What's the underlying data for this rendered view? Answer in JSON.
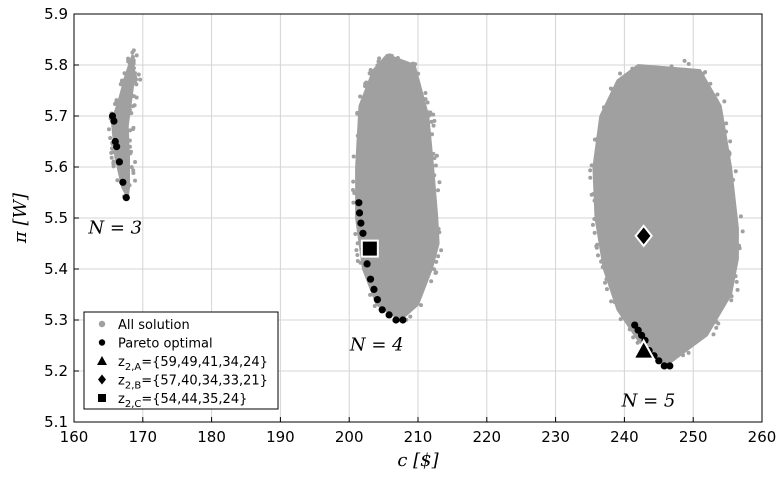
{
  "chart_data": {
    "type": "scatter",
    "xlabel": "c [$]",
    "ylabel": "π [W]",
    "xlim": [
      160,
      260
    ],
    "ylim": [
      5.1,
      5.9
    ],
    "x_ticks": [
      160,
      170,
      180,
      190,
      200,
      210,
      220,
      230,
      240,
      250,
      260
    ],
    "y_ticks": [
      5.1,
      5.2,
      5.3,
      5.4,
      5.5,
      5.6,
      5.7,
      5.8,
      5.9
    ],
    "grid": true,
    "legend_position": "bottom-left",
    "colors": {
      "all": "#a0a0a0",
      "pareto": "#000000",
      "frame": "#000000",
      "grid": "#d4d4d4"
    },
    "group_labels": [
      {
        "text": "N = 3",
        "x": 166,
        "y": 5.47
      },
      {
        "text": "N = 4",
        "x": 204,
        "y": 5.24
      },
      {
        "text": "N = 5",
        "x": 243.5,
        "y": 5.13
      }
    ],
    "series": [
      {
        "name": "All solution",
        "marker": "circle",
        "color": "#a0a0a0",
        "clusters": [
          {
            "left_boundary": [
              [
                168.5,
                5.82
              ],
              [
                167.5,
                5.78
              ],
              [
                166.5,
                5.73
              ],
              [
                165.5,
                5.69
              ],
              [
                166.0,
                5.62
              ],
              [
                167.0,
                5.56
              ],
              [
                167.8,
                5.54
              ]
            ],
            "right_boundary": [
              [
                168.5,
                5.82
              ],
              [
                168.8,
                5.78
              ],
              [
                168.3,
                5.73
              ],
              [
                167.8,
                5.68
              ],
              [
                168.0,
                5.62
              ],
              [
                168.0,
                5.56
              ],
              [
                167.8,
                5.54
              ]
            ]
          },
          {
            "left_boundary": [
              [
                205.5,
                5.82
              ],
              [
                203.5,
                5.79
              ],
              [
                201.5,
                5.72
              ],
              [
                201.0,
                5.6
              ],
              [
                201.0,
                5.5
              ],
              [
                202.0,
                5.4
              ],
              [
                204.0,
                5.33
              ],
              [
                207.5,
                5.3
              ]
            ],
            "right_boundary": [
              [
                205.5,
                5.82
              ],
              [
                209.5,
                5.8
              ],
              [
                211.5,
                5.7
              ],
              [
                212.2,
                5.6
              ],
              [
                212.8,
                5.5
              ],
              [
                213.0,
                5.45
              ],
              [
                212.0,
                5.4
              ],
              [
                210.0,
                5.33
              ],
              [
                207.5,
                5.3
              ]
            ]
          },
          {
            "left_boundary": [
              [
                242.0,
                5.8
              ],
              [
                239.0,
                5.77
              ],
              [
                236.5,
                5.7
              ],
              [
                235.5,
                5.6
              ],
              [
                235.8,
                5.5
              ],
              [
                237.0,
                5.4
              ],
              [
                239.0,
                5.32
              ],
              [
                242.0,
                5.26
              ],
              [
                246.0,
                5.21
              ]
            ],
            "right_boundary": [
              [
                242.0,
                5.8
              ],
              [
                251.0,
                5.79
              ],
              [
                254.0,
                5.72
              ],
              [
                255.5,
                5.6
              ],
              [
                256.5,
                5.48
              ],
              [
                256.5,
                5.42
              ],
              [
                255.5,
                5.35
              ],
              [
                252.0,
                5.27
              ],
              [
                246.0,
                5.21
              ]
            ]
          }
        ]
      },
      {
        "name": "Pareto optimal",
        "marker": "circle",
        "color": "#000000",
        "points": [
          [
            165.6,
            5.7
          ],
          [
            165.8,
            5.69
          ],
          [
            166.0,
            5.65
          ],
          [
            166.2,
            5.64
          ],
          [
            166.6,
            5.61
          ],
          [
            167.1,
            5.57
          ],
          [
            167.6,
            5.54
          ],
          [
            201.4,
            5.53
          ],
          [
            201.5,
            5.51
          ],
          [
            201.7,
            5.49
          ],
          [
            202.0,
            5.47
          ],
          [
            202.2,
            5.44
          ],
          [
            202.6,
            5.41
          ],
          [
            203.1,
            5.38
          ],
          [
            203.6,
            5.36
          ],
          [
            204.1,
            5.34
          ],
          [
            204.8,
            5.32
          ],
          [
            205.8,
            5.31
          ],
          [
            206.8,
            5.3
          ],
          [
            207.8,
            5.3
          ],
          [
            241.5,
            5.29
          ],
          [
            242.0,
            5.28
          ],
          [
            242.5,
            5.27
          ],
          [
            243.0,
            5.26
          ],
          [
            243.6,
            5.24
          ],
          [
            244.3,
            5.23
          ],
          [
            245.0,
            5.22
          ],
          [
            245.8,
            5.21
          ],
          [
            246.6,
            5.21
          ]
        ]
      },
      {
        "name": "z₂,A={59,49,41,34,24}",
        "marker": "triangle",
        "color": "#000000",
        "points": [
          [
            242.8,
            5.24
          ]
        ]
      },
      {
        "name": "z₂,B={57,40,34,33,21}",
        "marker": "diamond",
        "color": "#000000",
        "points": [
          [
            242.8,
            5.465
          ]
        ]
      },
      {
        "name": "z₂,C={54,44,35,24}",
        "marker": "square",
        "color": "#000000",
        "points": [
          [
            203.0,
            5.44
          ]
        ]
      }
    ],
    "legend": [
      {
        "marker": "circle-gray",
        "label": "All solution"
      },
      {
        "marker": "circle",
        "label": "Pareto optimal"
      },
      {
        "marker": "triangle",
        "label": "z",
        "sub": "2,A",
        "rest": "={59,49,41,34,24}"
      },
      {
        "marker": "diamond",
        "label": "z",
        "sub": "2,B",
        "rest": "={57,40,34,33,21}"
      },
      {
        "marker": "square",
        "label": "z",
        "sub": "2,C",
        "rest": "={54,44,35,24}"
      }
    ]
  }
}
